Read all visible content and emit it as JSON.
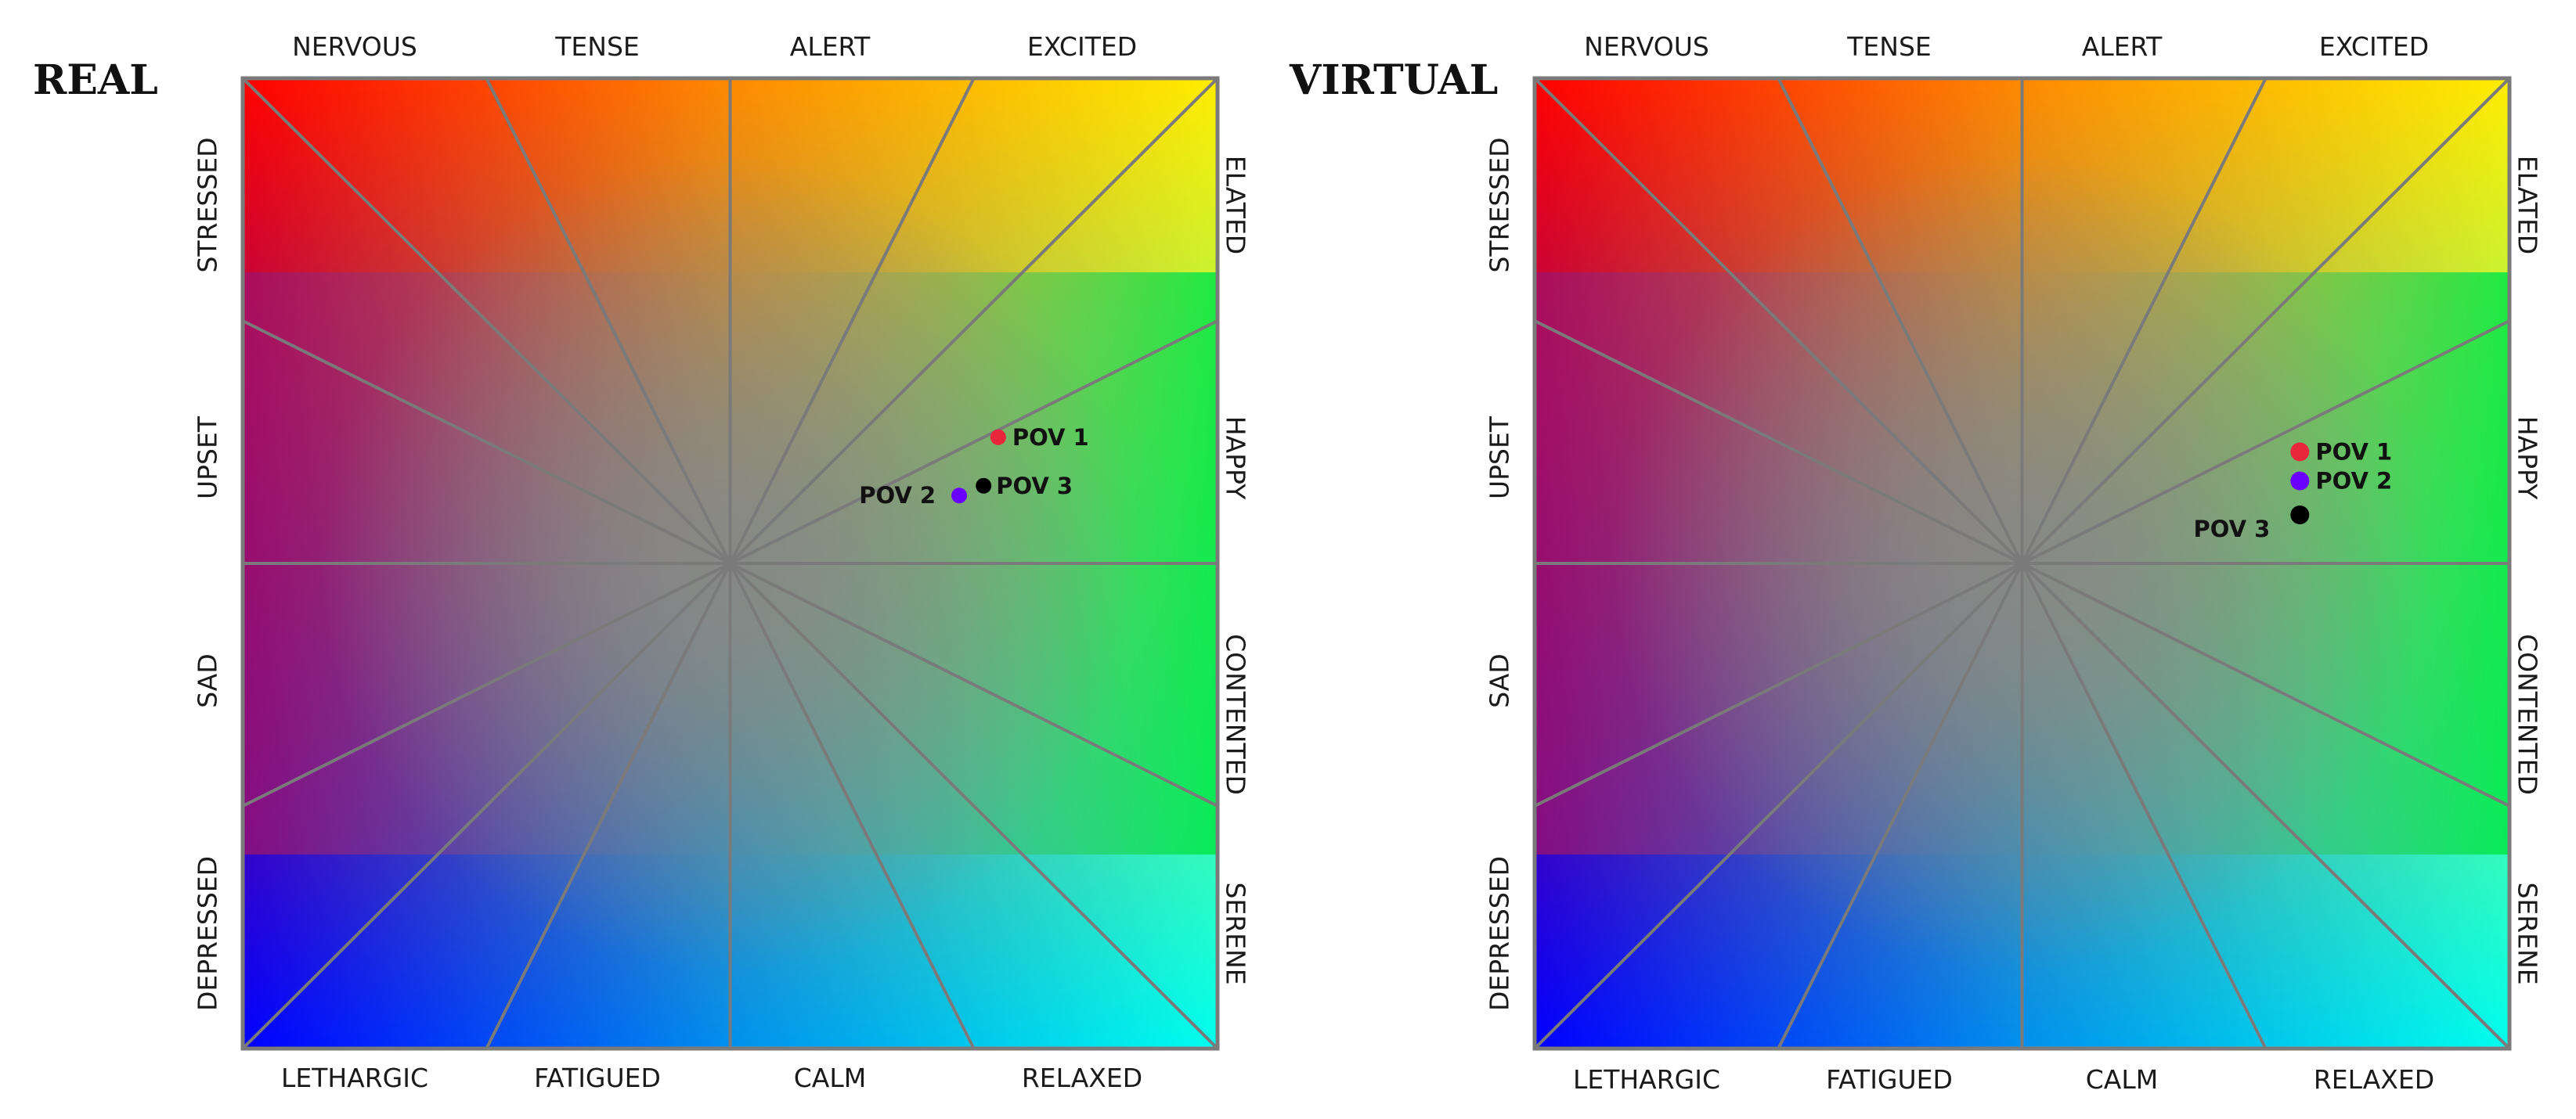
{
  "chart_data": [
    {
      "type": "scatter",
      "title": "REAL",
      "labels": {
        "top": [
          "NERVOUS",
          "TENSE",
          "ALERT",
          "EXCITED"
        ],
        "bottom": [
          "LETHARGIC",
          "FATIGUED",
          "CALM",
          "RELAXED"
        ],
        "left": [
          "STRESSED",
          "UPSET",
          "SAD",
          "DEPRESSED"
        ],
        "right": [
          "ELATED",
          "HAPPY",
          "CONTENTED",
          "SERENE"
        ]
      },
      "xlim": [
        -1,
        1
      ],
      "ylim": [
        -1,
        1
      ],
      "series": [
        {
          "name": "POV 1",
          "x": 0.55,
          "y": 0.26,
          "color": "#e8263c"
        },
        {
          "name": "POV 2",
          "x": 0.47,
          "y": 0.14,
          "color": "#6a00ff"
        },
        {
          "name": "POV 3",
          "x": 0.52,
          "y": 0.16,
          "color": "#000000"
        }
      ]
    },
    {
      "type": "scatter",
      "title": "VIRTUAL",
      "labels": {
        "top": [
          "NERVOUS",
          "TENSE",
          "ALERT",
          "EXCITED"
        ],
        "bottom": [
          "LETHARGIC",
          "FATIGUED",
          "CALM",
          "RELAXED"
        ],
        "left": [
          "STRESSED",
          "UPSET",
          "SAD",
          "DEPRESSED"
        ],
        "right": [
          "ELATED",
          "HAPPY",
          "CONTENTED",
          "SERENE"
        ]
      },
      "xlim": [
        -1,
        1
      ],
      "ylim": [
        -1,
        1
      ],
      "series": [
        {
          "name": "POV 1",
          "x": 0.57,
          "y": 0.23,
          "color": "#e8263c"
        },
        {
          "name": "POV 2",
          "x": 0.57,
          "y": 0.17,
          "color": "#6a00ff"
        },
        {
          "name": "POV 3",
          "x": 0.57,
          "y": 0.1,
          "color": "#000000"
        }
      ]
    }
  ],
  "colors": {
    "nervous": "#ff0000",
    "excited": "#ffee00",
    "happy": "#00e845",
    "serene": "#00ffee",
    "depressed": "#0000ff",
    "center": "#888888",
    "grid": "#7a7a7a"
  }
}
